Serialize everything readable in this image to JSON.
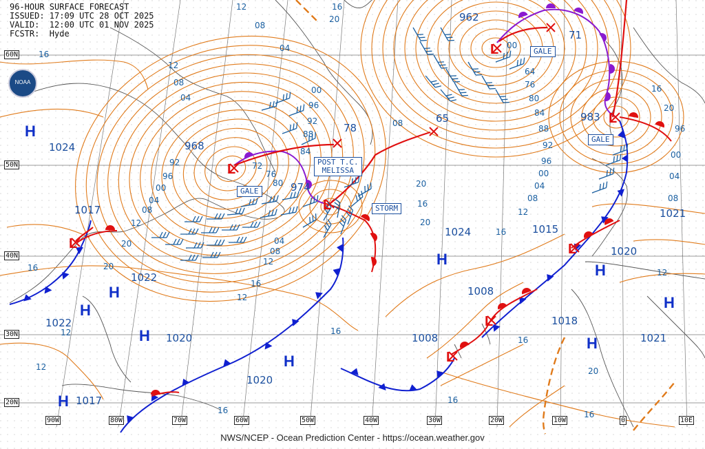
{
  "header": {
    "line1": "96-HOUR SURFACE FORECAST",
    "line2": "ISSUED: 17:09 UTC 28 OCT 2025",
    "line3": "VALID:  12:00 UTC 01 NOV 2025",
    "line4": "FCSTR:  Hyde"
  },
  "footer": "NWS/NCEP - Ocean Prediction Center - https://ocean.weather.gov",
  "logo_text": "NOAA",
  "lat_labels": [
    "60N",
    "50N",
    "40N",
    "30N",
    "20N"
  ],
  "lon_labels": [
    "90W",
    "80W",
    "70W",
    "60W",
    "50W",
    "40W",
    "30W",
    "20W",
    "10W",
    "0",
    "10E"
  ],
  "boxes": [
    {
      "id": "gale1",
      "text": "GALE"
    },
    {
      "id": "gale2",
      "text": "GALE"
    },
    {
      "id": "gale3",
      "text": "GALE"
    },
    {
      "id": "storm",
      "text": "STORM"
    },
    {
      "id": "melissa",
      "text": "POST T.C.\nMELISSA"
    }
  ],
  "pressure_labels": [
    "962",
    "71",
    "968",
    "78",
    "65",
    "974",
    "983",
    "1017",
    "1022",
    "1022",
    "1020",
    "1020",
    "1017",
    "1024",
    "1024",
    "1015",
    "1020",
    "1008",
    "1008",
    "1018",
    "1021",
    "1021"
  ],
  "isobar_labels": [
    "12",
    "08",
    "04",
    "16",
    "12",
    "08",
    "04",
    "00",
    "96",
    "92",
    "88",
    "84",
    "72",
    "76",
    "80",
    "92",
    "96",
    "00",
    "04",
    "08",
    "12",
    "16",
    "20",
    "20",
    "16",
    "12",
    "08",
    "04",
    "00",
    "64",
    "76",
    "80",
    "84",
    "88",
    "92",
    "96",
    "00",
    "04",
    "08",
    "12",
    "16",
    "20",
    "20",
    "16",
    "12",
    "16",
    "16",
    "16",
    "20",
    "96",
    "00",
    "04",
    "08",
    "12",
    "16",
    "20",
    "12",
    "08",
    "16",
    "12",
    "16",
    "20",
    "16",
    "16",
    "12"
  ],
  "centers": {
    "H": 10,
    "L": 8
  },
  "colors": {
    "isobar": "#e07a1a",
    "cold_front": "#1020d0",
    "warm_front": "#e01010",
    "occluded": "#8a1ad0",
    "wind": "#1a5fa0",
    "track": "#e01010",
    "grid": "#999999",
    "land": "#555555"
  }
}
